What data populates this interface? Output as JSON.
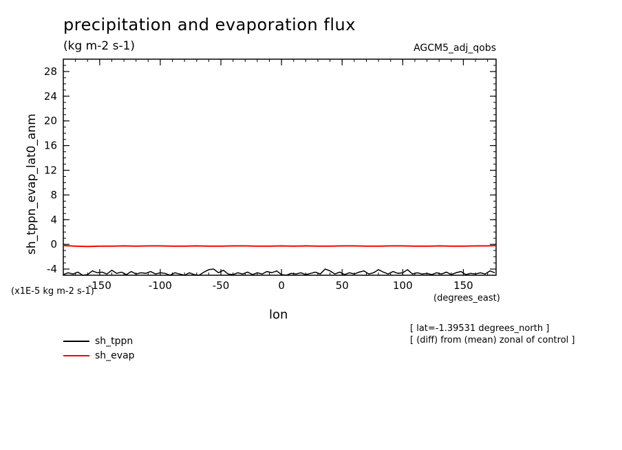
{
  "chart_data": {
    "type": "line",
    "title": "precipitation and evaporation flux",
    "subtitle": "(kg m-2 s-1)",
    "dataset": "AGCM5_adj_qobs",
    "ylabel": "sh_tppn_evap_lat0_anm",
    "xlabel": "lon",
    "x_units": "(degrees_east)",
    "y_units": "(x1E-5 kg m-2 s-1)",
    "xlim": [
      -180,
      177
    ],
    "ylim": [
      -5,
      30
    ],
    "x_ticks": [
      -150,
      -100,
      -50,
      0,
      50,
      100,
      150
    ],
    "y_ticks": [
      -4,
      0,
      4,
      8,
      12,
      16,
      20,
      24,
      28
    ],
    "grid": false,
    "legend_position": "bottom-left",
    "notes": [
      "[ lat=-1.39531 degrees_north ]",
      "[ (diff) from (mean) zonal of control ]"
    ],
    "series": [
      {
        "name": "sh_tppn",
        "color": "#000000",
        "x": [
          -180,
          -176,
          -172,
          -168,
          -164,
          -160,
          -156,
          -152,
          -148,
          -144,
          -140,
          -136,
          -132,
          -128,
          -124,
          -120,
          -116,
          -112,
          -108,
          -104,
          -100,
          -96,
          -92,
          -88,
          -84,
          -80,
          -76,
          -72,
          -68,
          -64,
          -60,
          -56,
          -52,
          -48,
          -44,
          -40,
          -36,
          -32,
          -28,
          -24,
          -20,
          -16,
          -12,
          -8,
          -4,
          0,
          4,
          8,
          12,
          16,
          20,
          24,
          28,
          32,
          36,
          40,
          44,
          48,
          52,
          56,
          60,
          64,
          68,
          72,
          76,
          80,
          84,
          88,
          92,
          96,
          100,
          104,
          108,
          112,
          116,
          120,
          124,
          128,
          132,
          136,
          140,
          144,
          148,
          152,
          156,
          160,
          164,
          168,
          172,
          176
        ],
        "values": [
          -4.9,
          -4.6,
          -4.8,
          -4.5,
          -5.0,
          -4.9,
          -4.3,
          -4.6,
          -4.5,
          -4.8,
          -4.2,
          -4.7,
          -4.5,
          -4.9,
          -4.4,
          -4.8,
          -4.6,
          -4.7,
          -4.4,
          -4.8,
          -4.6,
          -4.7,
          -5.0,
          -4.6,
          -4.8,
          -5.0,
          -4.6,
          -4.9,
          -5.0,
          -4.5,
          -4.1,
          -4.0,
          -4.6,
          -4.2,
          -4.8,
          -4.9,
          -4.6,
          -4.8,
          -4.5,
          -4.9,
          -4.6,
          -4.8,
          -4.4,
          -4.6,
          -4.3,
          -4.9,
          -5.0,
          -4.7,
          -4.8,
          -4.6,
          -4.9,
          -4.7,
          -4.5,
          -4.8,
          -4.0,
          -4.3,
          -4.8,
          -4.5,
          -4.9,
          -4.6,
          -4.8,
          -4.5,
          -4.3,
          -4.8,
          -4.6,
          -4.1,
          -4.5,
          -4.8,
          -4.4,
          -4.7,
          -4.6,
          -4.1,
          -4.8,
          -4.6,
          -4.8,
          -4.7,
          -4.9,
          -4.6,
          -4.8,
          -4.5,
          -4.9,
          -4.6,
          -4.4,
          -4.9,
          -4.7,
          -4.8,
          -4.6,
          -4.8,
          -4.3,
          -4.6
        ],
        "valueNote": "approximate, read from the plot"
      },
      {
        "name": "sh_evap",
        "color": "#ff0000",
        "x": [
          -180,
          -170,
          -160,
          -150,
          -140,
          -130,
          -120,
          -110,
          -100,
          -90,
          -80,
          -70,
          -60,
          -50,
          -40,
          -30,
          -20,
          -10,
          0,
          10,
          20,
          30,
          40,
          50,
          60,
          70,
          80,
          90,
          100,
          110,
          120,
          130,
          140,
          150,
          160,
          170,
          177
        ],
        "values": [
          -0.2,
          -0.3,
          -0.35,
          -0.3,
          -0.3,
          -0.25,
          -0.3,
          -0.25,
          -0.25,
          -0.3,
          -0.3,
          -0.25,
          -0.3,
          -0.3,
          -0.25,
          -0.25,
          -0.3,
          -0.3,
          -0.25,
          -0.3,
          -0.25,
          -0.3,
          -0.3,
          -0.25,
          -0.25,
          -0.3,
          -0.3,
          -0.25,
          -0.25,
          -0.3,
          -0.3,
          -0.25,
          -0.3,
          -0.3,
          -0.25,
          -0.25,
          -0.2
        ]
      }
    ]
  }
}
